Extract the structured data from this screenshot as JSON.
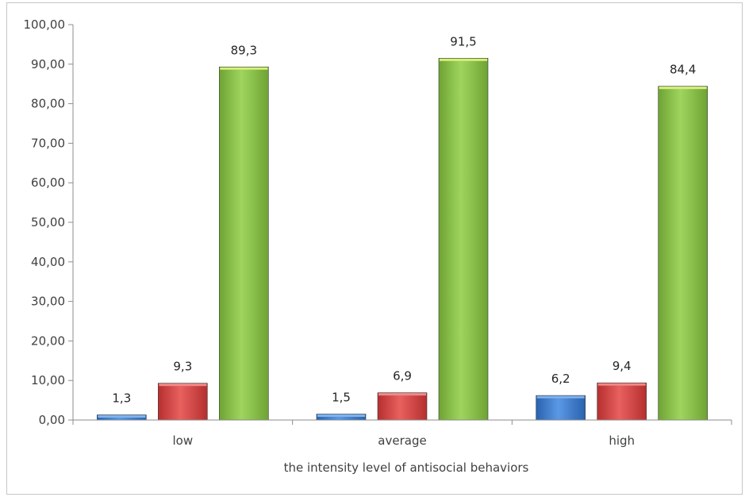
{
  "chart_data": {
    "type": "bar",
    "xlabel": "the intensity level of antisocial behaviors",
    "ylabel": "",
    "ylim": [
      0,
      100
    ],
    "y_ticks": [
      "0,00",
      "10,00",
      "20,00",
      "30,00",
      "40,00",
      "50,00",
      "60,00",
      "70,00",
      "80,00",
      "90,00",
      "100,00"
    ],
    "categories": [
      "low",
      "average",
      "high"
    ],
    "series": [
      {
        "values": [
          1.3,
          1.5,
          6.2
        ],
        "labels": [
          "1,3",
          "1,5",
          "6,2"
        ],
        "color": "#3f7fd0"
      },
      {
        "values": [
          9.3,
          6.9,
          9.4
        ],
        "labels": [
          "9,3",
          "6,9",
          "9,4"
        ],
        "color": "#d94a4a"
      },
      {
        "values": [
          89.3,
          91.5,
          84.4
        ],
        "labels": [
          "89,3",
          "91,5",
          "84,4"
        ],
        "color": "#8cc24d"
      }
    ],
    "grid": false,
    "legend": "none"
  }
}
